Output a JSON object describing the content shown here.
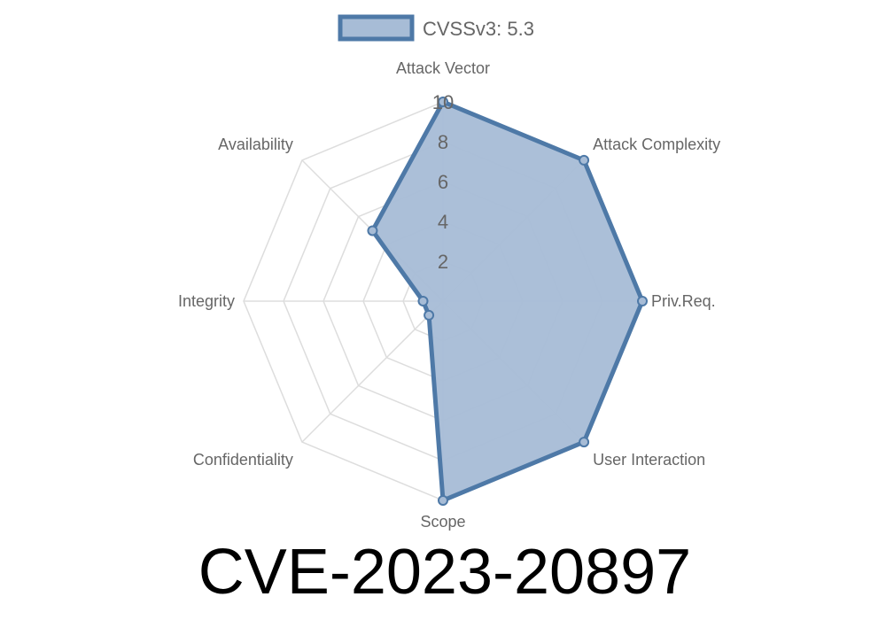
{
  "chart_data": {
    "type": "radar",
    "title": "CVE-2023-20897",
    "axes": [
      "Attack Vector",
      "Attack Complexity",
      "Priv.Req.",
      "User Interaction",
      "Scope",
      "Confidentiality",
      "Integrity",
      "Availability"
    ],
    "series": [
      {
        "name": "CVSSv3: 5.3",
        "values": [
          10,
          10,
          10,
          10,
          10,
          1,
          1,
          5
        ]
      }
    ],
    "rlim": [
      0,
      10
    ],
    "ticks": [
      "2",
      "4",
      "6",
      "8",
      "10"
    ],
    "grid": true,
    "legend": "top",
    "colors": {
      "line": "#4e79a7",
      "fill": "#a7bcd6"
    }
  }
}
